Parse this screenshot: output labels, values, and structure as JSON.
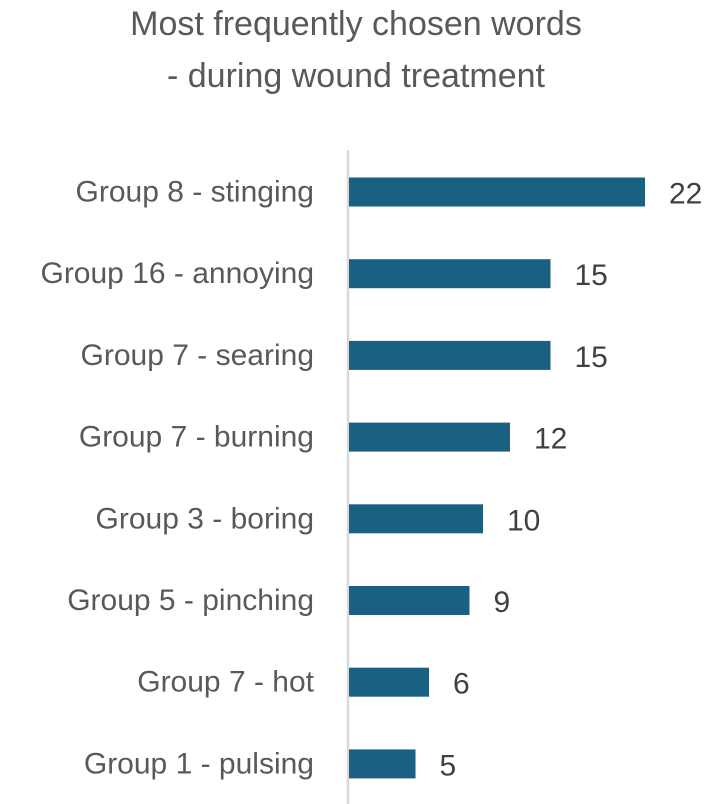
{
  "chart_data": {
    "type": "bar",
    "orientation": "horizontal",
    "title": "Most frequently chosen words - during wound treatment",
    "title_lines": [
      "Most frequently chosen words",
      "- during wound treatment"
    ],
    "categories": [
      "Group 8 - stinging",
      "Group 16 - annoying",
      "Group 7 - searing",
      "Group 7 - burning",
      "Group 3 - boring",
      "Group 5 - pinching",
      "Group 7 - hot",
      "Group 1 - pulsing"
    ],
    "values": [
      22,
      15,
      15,
      12,
      10,
      9,
      6,
      5
    ],
    "data_labels": [
      "22",
      "15",
      "15",
      "12",
      "10",
      "9",
      "6",
      "5"
    ],
    "xlim": [
      0,
      22
    ],
    "grid": false,
    "legend": "none",
    "bar_color": "#1a6082",
    "axis_color": "#d9d9d9"
  }
}
